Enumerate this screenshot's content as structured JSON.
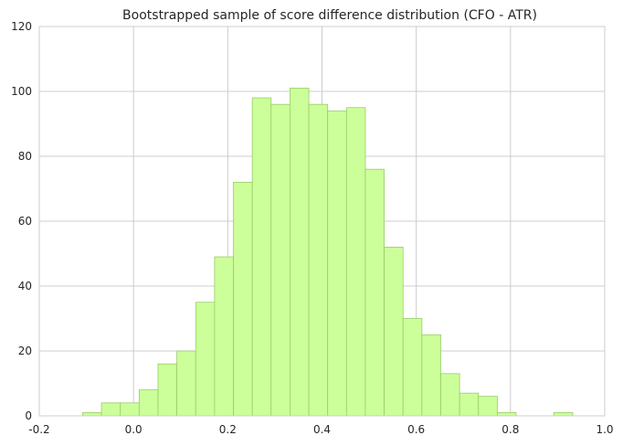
{
  "chart_data": {
    "type": "bar",
    "title": "Bootstrapped sample of score difference distribution (CFO - ATR)",
    "xlabel": "",
    "ylabel": "",
    "xlim": [
      -0.2,
      1.0
    ],
    "ylim": [
      0,
      120
    ],
    "xticks": [
      "-0.2",
      "0.0",
      "0.2",
      "0.4",
      "0.6",
      "0.8",
      "1.0"
    ],
    "yticks": [
      "0",
      "20",
      "40",
      "60",
      "80",
      "100",
      "120"
    ],
    "grid": true,
    "bar_color": "#ccff99",
    "bar_edge_color": "#9acc6a",
    "bins": [
      {
        "x0": -0.108,
        "x1": -0.068,
        "count": 1
      },
      {
        "x0": -0.068,
        "x1": -0.028,
        "count": 4
      },
      {
        "x0": -0.028,
        "x1": 0.012,
        "count": 4
      },
      {
        "x0": 0.012,
        "x1": 0.052,
        "count": 8
      },
      {
        "x0": 0.052,
        "x1": 0.092,
        "count": 16
      },
      {
        "x0": 0.092,
        "x1": 0.132,
        "count": 20
      },
      {
        "x0": 0.132,
        "x1": 0.172,
        "count": 35
      },
      {
        "x0": 0.172,
        "x1": 0.212,
        "count": 49
      },
      {
        "x0": 0.212,
        "x1": 0.252,
        "count": 72
      },
      {
        "x0": 0.252,
        "x1": 0.292,
        "count": 98
      },
      {
        "x0": 0.292,
        "x1": 0.332,
        "count": 96
      },
      {
        "x0": 0.332,
        "x1": 0.372,
        "count": 101
      },
      {
        "x0": 0.372,
        "x1": 0.412,
        "count": 96
      },
      {
        "x0": 0.412,
        "x1": 0.452,
        "count": 94
      },
      {
        "x0": 0.452,
        "x1": 0.492,
        "count": 95
      },
      {
        "x0": 0.492,
        "x1": 0.532,
        "count": 76
      },
      {
        "x0": 0.532,
        "x1": 0.572,
        "count": 52
      },
      {
        "x0": 0.572,
        "x1": 0.612,
        "count": 30
      },
      {
        "x0": 0.612,
        "x1": 0.652,
        "count": 25
      },
      {
        "x0": 0.652,
        "x1": 0.692,
        "count": 13
      },
      {
        "x0": 0.692,
        "x1": 0.732,
        "count": 7
      },
      {
        "x0": 0.732,
        "x1": 0.772,
        "count": 6
      },
      {
        "x0": 0.772,
        "x1": 0.812,
        "count": 1
      },
      {
        "x0": 0.812,
        "x1": 0.852,
        "count": 0
      },
      {
        "x0": 0.852,
        "x1": 0.892,
        "count": 0
      },
      {
        "x0": 0.892,
        "x1": 0.932,
        "count": 1
      }
    ]
  }
}
